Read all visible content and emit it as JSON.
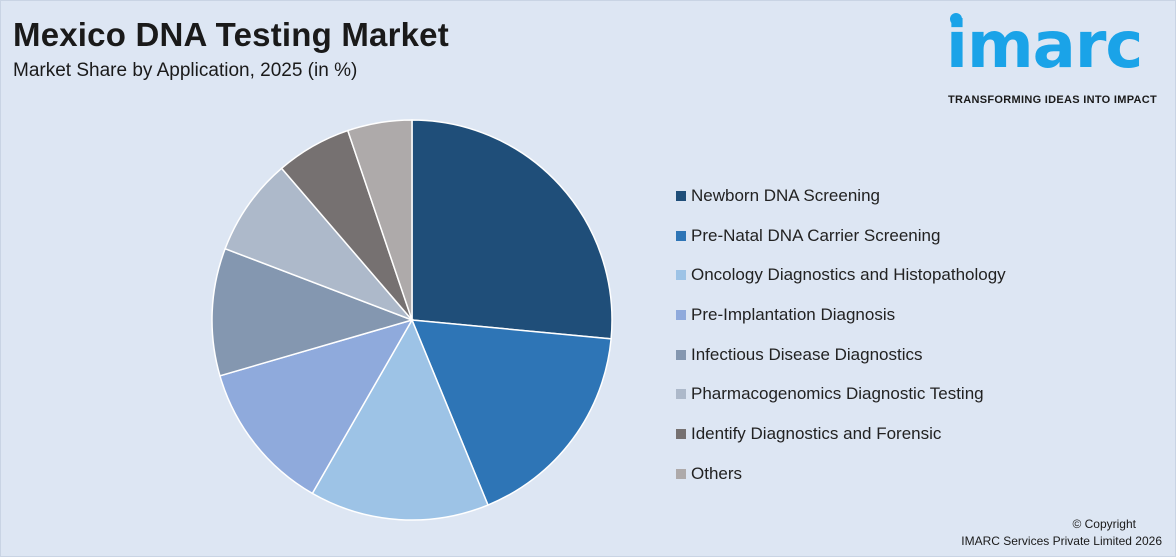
{
  "header": {
    "title": "Mexico DNA Testing Market",
    "subtitle": "Market Share by Application, 2025 (in %)"
  },
  "logo": {
    "wordmark": "imarc",
    "tagline": "TRANSFORMING IDEAS INTO IMPACT",
    "color": "#1aa3e8"
  },
  "chart_data": {
    "type": "pie",
    "title": "Mexico DNA Testing Market",
    "subtitle": "Market Share by Application, 2025 (in %)",
    "legend_position": "right",
    "categories": [
      "Newborn DNA Screening",
      "Pre-Natal DNA Carrier Screening",
      "Oncology Diagnostics and Histopathology",
      "Pre-Implantation Diagnosis",
      "Infectious Disease Diagnostics",
      "Pharmacogenomics Diagnostic Testing",
      "Identify Diagnostics and Forensic",
      "Others"
    ],
    "values": [
      26.5,
      17.3,
      14.5,
      12.2,
      10.3,
      7.9,
      6.1,
      5.2
    ],
    "colors": [
      "#1f4e79",
      "#2e75b6",
      "#9dc3e6",
      "#8faadc",
      "#8497b0",
      "#adb9ca",
      "#767171",
      "#aeaaaa"
    ]
  },
  "footer": {
    "copyright_line1": "© Copyright",
    "copyright_line2": "IMARC Services Private Limited 2026"
  }
}
